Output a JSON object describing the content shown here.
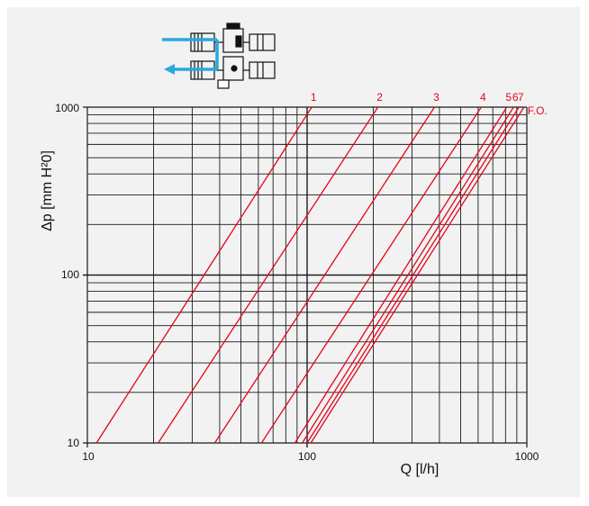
{
  "chart_data": {
    "type": "line",
    "xscale": "log",
    "yscale": "log",
    "xlim": [
      10,
      1000
    ],
    "ylim": [
      10,
      1000
    ],
    "xlabel": "Q [l/h]",
    "ylabel": "Δp [mm H²0]",
    "xticks": [
      "10",
      "100",
      "1000"
    ],
    "yticks": [
      "10",
      "100",
      "1000"
    ],
    "grid": true,
    "series": [
      {
        "name": "1",
        "points": [
          [
            11,
            10
          ],
          [
            105,
            1000
          ]
        ]
      },
      {
        "name": "2",
        "points": [
          [
            21,
            10
          ],
          [
            210,
            1000
          ]
        ]
      },
      {
        "name": "3",
        "points": [
          [
            38,
            10
          ],
          [
            380,
            1000
          ]
        ]
      },
      {
        "name": "4",
        "points": [
          [
            62,
            10
          ],
          [
            620,
            1000
          ]
        ]
      },
      {
        "name": "5",
        "points": [
          [
            88,
            10
          ],
          [
            810,
            1000
          ]
        ]
      },
      {
        "name": "6",
        "points": [
          [
            95,
            10
          ],
          [
            870,
            1000
          ]
        ]
      },
      {
        "name": "7",
        "points": [
          [
            100,
            10
          ],
          [
            920,
            1000
          ]
        ]
      },
      {
        "name": "F.O.",
        "points": [
          [
            104,
            10
          ],
          [
            970,
            1000
          ]
        ]
      }
    ]
  },
  "colors": {
    "curve": "#e3061b",
    "grid": "#1a1a1a",
    "background": "#f2f2f2",
    "arrow": "#2aa7df"
  },
  "icon": "valve-diagram-icon"
}
